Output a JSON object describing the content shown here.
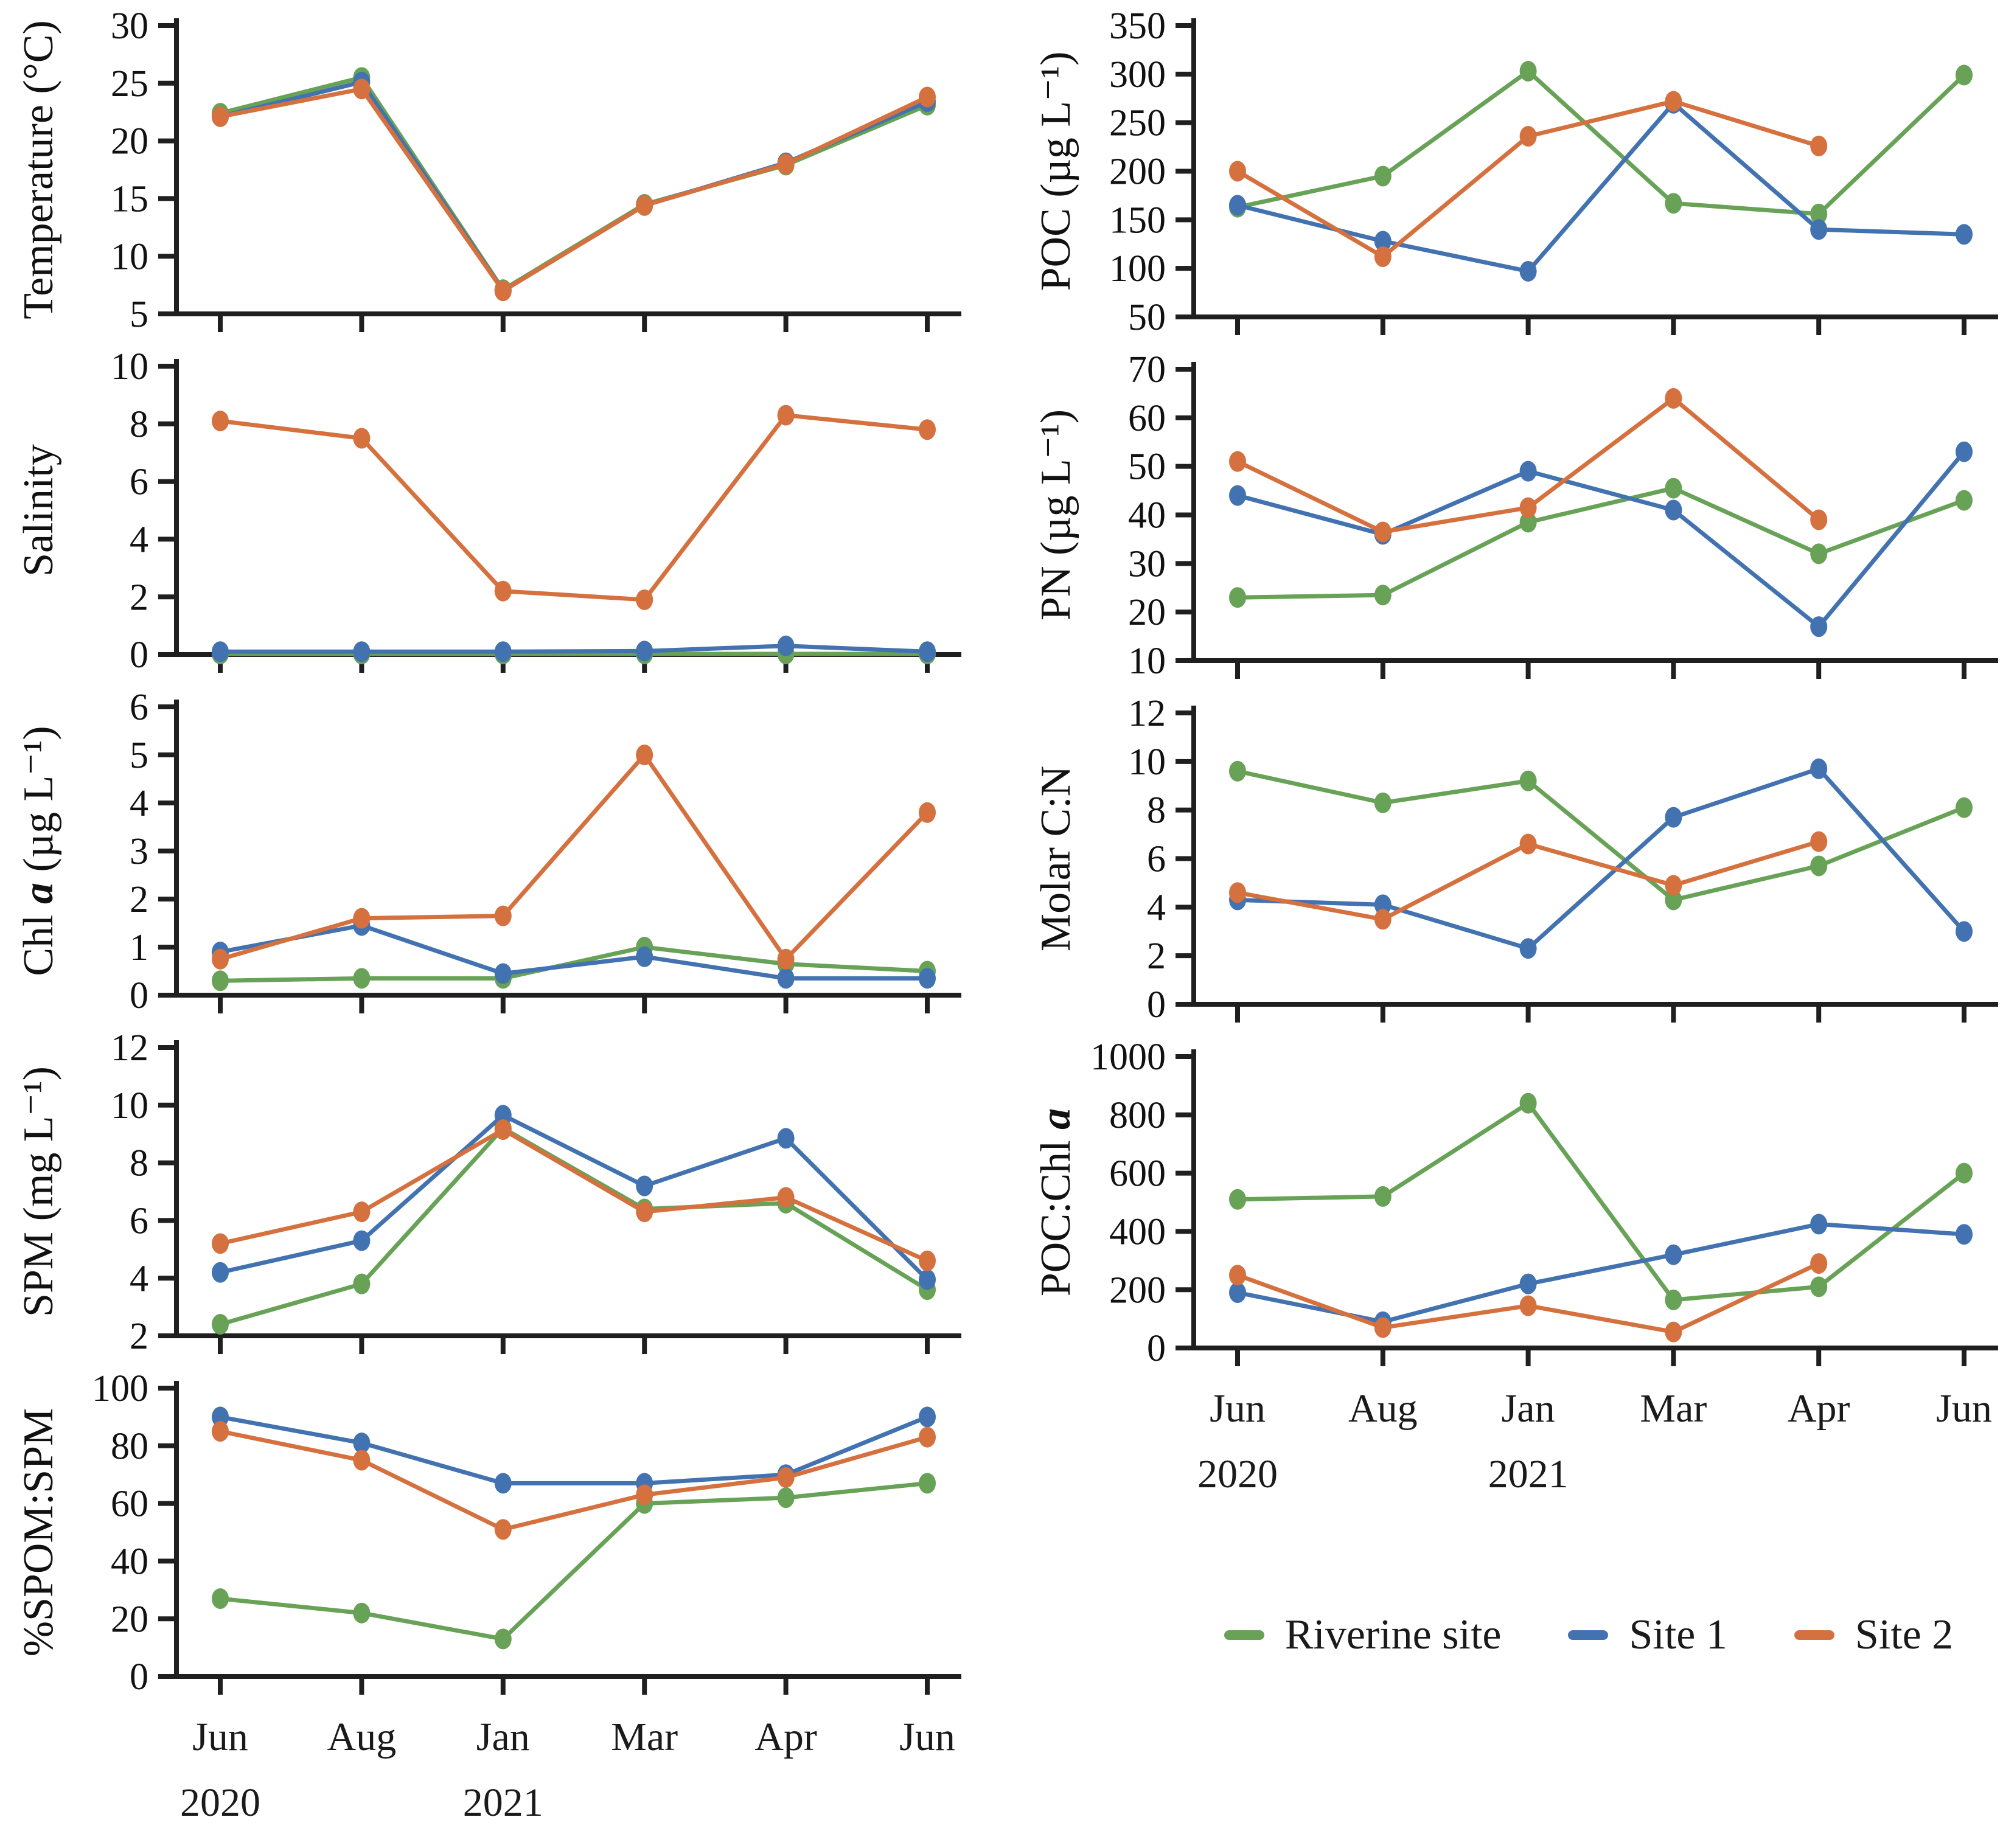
{
  "colors": {
    "riverine": "#68a257",
    "site1": "#4372b0",
    "site2": "#d5713f",
    "axis": "#1f1f1f"
  },
  "legend": [
    {
      "label": "Riverine site",
      "series": "riverine"
    },
    {
      "label": "Site 1",
      "series": "site1"
    },
    {
      "label": "Site 2",
      "series": "site2"
    }
  ],
  "x_axis": {
    "labels": [
      "Jun",
      "Aug",
      "Jan",
      "Mar",
      "Apr",
      "Jun"
    ],
    "year_labels": [
      {
        "index": 0,
        "text": "2020"
      },
      {
        "index": 2,
        "text": "2021"
      }
    ]
  },
  "chart_data": [
    {
      "id": "temperature",
      "type": "line",
      "column": "left",
      "ylabel": "Temperature (°C)",
      "ylim": [
        5,
        30
      ],
      "yticks": [
        5,
        10,
        15,
        20,
        25,
        30
      ],
      "categories": [
        "Jun 2020",
        "Aug",
        "Jan 2021",
        "Mar",
        "Apr",
        "Jun"
      ],
      "series": [
        {
          "name": "Riverine site",
          "key": "riverine",
          "values": [
            22.4,
            25.5,
            7.1,
            14.5,
            17.9,
            23.1
          ]
        },
        {
          "name": "Site 1",
          "key": "site1",
          "values": [
            22.1,
            25.1,
            7.0,
            14.4,
            18.1,
            23.4
          ]
        },
        {
          "name": "Site 2",
          "key": "site2",
          "values": [
            22.1,
            24.5,
            7.0,
            14.4,
            18.0,
            23.8
          ]
        }
      ]
    },
    {
      "id": "salinity",
      "type": "line",
      "column": "left",
      "ylabel": "Salinity",
      "ylim": [
        0,
        10
      ],
      "yticks": [
        0,
        2,
        4,
        6,
        8,
        10
      ],
      "categories": [
        "Jun 2020",
        "Aug",
        "Jan 2021",
        "Mar",
        "Apr",
        "Jun"
      ],
      "series": [
        {
          "name": "Riverine site",
          "key": "riverine",
          "values": [
            0.02,
            0.02,
            0.02,
            0.02,
            0.02,
            0.02
          ]
        },
        {
          "name": "Site 1",
          "key": "site1",
          "values": [
            0.1,
            0.1,
            0.1,
            0.12,
            0.3,
            0.1
          ]
        },
        {
          "name": "Site 2",
          "key": "site2",
          "values": [
            8.1,
            7.5,
            2.2,
            1.9,
            8.3,
            7.8
          ]
        }
      ]
    },
    {
      "id": "chl-a",
      "type": "line",
      "column": "left",
      "ylabel": "Chl *a* (µg L⁻¹)",
      "ylim": [
        0,
        6
      ],
      "yticks": [
        0,
        1,
        2,
        3,
        4,
        5,
        6
      ],
      "categories": [
        "Jun 2020",
        "Aug",
        "Jan 2021",
        "Mar",
        "Apr",
        "Jun"
      ],
      "series": [
        {
          "name": "Riverine site",
          "key": "riverine",
          "values": [
            0.3,
            0.35,
            0.35,
            1.0,
            0.65,
            0.5
          ]
        },
        {
          "name": "Site 1",
          "key": "site1",
          "values": [
            0.9,
            1.45,
            0.45,
            0.8,
            0.35,
            0.35
          ]
        },
        {
          "name": "Site 2",
          "key": "site2",
          "values": [
            0.75,
            1.6,
            1.65,
            5.0,
            0.75,
            3.8
          ]
        }
      ]
    },
    {
      "id": "spm",
      "type": "line",
      "column": "left",
      "ylabel": "SPM (mg L⁻¹)",
      "ylim": [
        2,
        12
      ],
      "yticks": [
        2,
        4,
        6,
        8,
        10,
        12
      ],
      "categories": [
        "Jun 2020",
        "Aug",
        "Jan 2021",
        "Mar",
        "Apr",
        "Jun"
      ],
      "series": [
        {
          "name": "Riverine site",
          "key": "riverine",
          "values": [
            2.4,
            3.8,
            9.2,
            6.4,
            6.6,
            3.6
          ]
        },
        {
          "name": "Site 1",
          "key": "site1",
          "values": [
            4.2,
            5.3,
            9.65,
            7.2,
            8.85,
            3.95
          ]
        },
        {
          "name": "Site 2",
          "key": "site2",
          "values": [
            5.2,
            6.3,
            9.15,
            6.3,
            6.8,
            4.6
          ]
        }
      ]
    },
    {
      "id": "spom-spm",
      "type": "line",
      "column": "left",
      "show_xlabels": true,
      "ylabel": "%SPOM:SPM",
      "ylim": [
        0,
        100
      ],
      "yticks": [
        0,
        20,
        40,
        60,
        80,
        100
      ],
      "categories": [
        "Jun 2020",
        "Aug",
        "Jan 2021",
        "Mar",
        "Apr",
        "Jun"
      ],
      "series": [
        {
          "name": "Riverine site",
          "key": "riverine",
          "values": [
            27,
            22,
            13,
            60,
            62,
            67
          ]
        },
        {
          "name": "Site 1",
          "key": "site1",
          "values": [
            90,
            81,
            67,
            67,
            70,
            90
          ]
        },
        {
          "name": "Site 2",
          "key": "site2",
          "values": [
            85,
            75,
            51,
            63,
            69,
            83
          ]
        }
      ]
    },
    {
      "id": "poc",
      "type": "line",
      "column": "right",
      "ylabel": "POC (µg L⁻¹)",
      "ylim": [
        50,
        350
      ],
      "yticks": [
        50,
        100,
        150,
        200,
        250,
        300,
        350
      ],
      "categories": [
        "Jun 2020",
        "Aug",
        "Jan 2021",
        "Mar",
        "Apr",
        "Jun"
      ],
      "series": [
        {
          "name": "Riverine site",
          "key": "riverine",
          "values": [
            163,
            195,
            303,
            167,
            156,
            299
          ]
        },
        {
          "name": "Site 1",
          "key": "site1",
          "values": [
            165,
            128,
            97,
            270,
            140,
            135
          ]
        },
        {
          "name": "Site 2",
          "key": "site2",
          "values": [
            200,
            112,
            236,
            272,
            226,
            null
          ]
        }
      ]
    },
    {
      "id": "pn",
      "type": "line",
      "column": "right",
      "ylabel": "PN (µg L⁻¹)",
      "ylim": [
        10,
        70
      ],
      "yticks": [
        10,
        20,
        30,
        40,
        50,
        60,
        70
      ],
      "categories": [
        "Jun 2020",
        "Aug",
        "Jan 2021",
        "Mar",
        "Apr",
        "Jun"
      ],
      "series": [
        {
          "name": "Riverine site",
          "key": "riverine",
          "values": [
            23,
            23.5,
            38.5,
            45.5,
            32,
            43
          ]
        },
        {
          "name": "Site 1",
          "key": "site1",
          "values": [
            44,
            36,
            49,
            41,
            17,
            53
          ]
        },
        {
          "name": "Site 2",
          "key": "site2",
          "values": [
            51,
            36.5,
            41.5,
            64,
            39,
            null
          ]
        }
      ]
    },
    {
      "id": "molar-cn",
      "type": "line",
      "column": "right",
      "ylabel": "Molar C:N",
      "ylim": [
        0,
        12
      ],
      "yticks": [
        0,
        2,
        4,
        6,
        8,
        10,
        12
      ],
      "categories": [
        "Jun 2020",
        "Aug",
        "Jan 2021",
        "Mar",
        "Apr",
        "Jun"
      ],
      "series": [
        {
          "name": "Riverine site",
          "key": "riverine",
          "values": [
            9.6,
            8.3,
            9.2,
            4.3,
            5.7,
            8.1
          ]
        },
        {
          "name": "Site 1",
          "key": "site1",
          "values": [
            4.3,
            4.1,
            2.3,
            7.7,
            9.7,
            3.0
          ]
        },
        {
          "name": "Site 2",
          "key": "site2",
          "values": [
            4.6,
            3.5,
            6.6,
            4.9,
            6.7,
            null
          ]
        }
      ]
    },
    {
      "id": "poc-chl-a",
      "type": "line",
      "column": "right",
      "show_xlabels": true,
      "ylabel": "POC:Chl *a*",
      "ylim": [
        0,
        1000
      ],
      "yticks": [
        0,
        200,
        400,
        600,
        800,
        1000
      ],
      "categories": [
        "Jun 2020",
        "Aug",
        "Jan 2021",
        "Mar",
        "Apr",
        "Jun"
      ],
      "series": [
        {
          "name": "Riverine site",
          "key": "riverine",
          "values": [
            510,
            520,
            840,
            165,
            210,
            600
          ]
        },
        {
          "name": "Site 1",
          "key": "site1",
          "values": [
            190,
            90,
            220,
            320,
            425,
            390
          ]
        },
        {
          "name": "Site 2",
          "key": "site2",
          "values": [
            250,
            70,
            145,
            55,
            290,
            null
          ]
        }
      ]
    }
  ]
}
